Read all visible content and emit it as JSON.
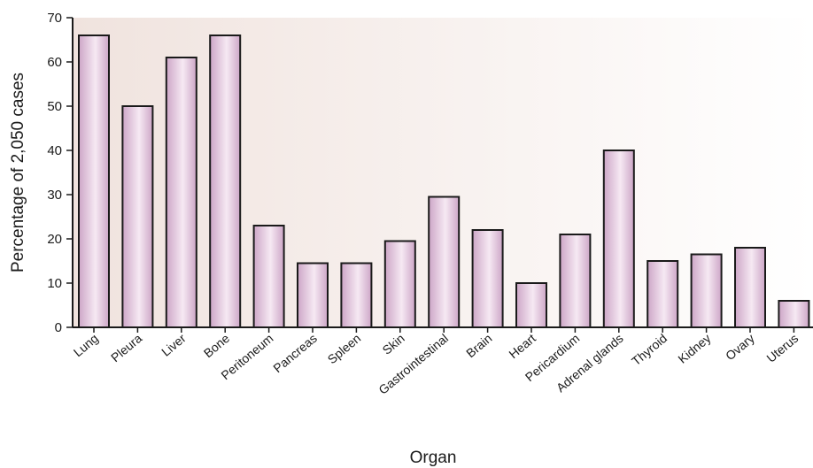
{
  "chart_data": {
    "type": "bar",
    "title": "",
    "xlabel": "Organ",
    "ylabel": "Percentage of 2,050 cases",
    "ylim": [
      0,
      70
    ],
    "yticks": [
      0,
      10,
      20,
      30,
      40,
      50,
      60,
      70
    ],
    "categories": [
      "Lung",
      "Pleura",
      "Liver",
      "Bone",
      "Peritoneum",
      "Pancreas",
      "Spleen",
      "Skin",
      "Gastrointestinal",
      "Brain",
      "Heart",
      "Pericardium",
      "Adrenal glands",
      "Thyroid",
      "Kidney",
      "Ovary",
      "Uterus"
    ],
    "values": [
      66,
      50,
      61,
      66,
      23,
      14.5,
      14.5,
      19.5,
      29.5,
      22,
      10,
      21,
      40,
      15,
      16.5,
      18,
      6
    ],
    "grid": false,
    "colors": {
      "bar_light": "#f6e9f3",
      "bar_dark": "#cda6c7",
      "background_left": "#f0e3de",
      "background_right": "#ffffff",
      "axis": "#1a1a1a"
    }
  }
}
